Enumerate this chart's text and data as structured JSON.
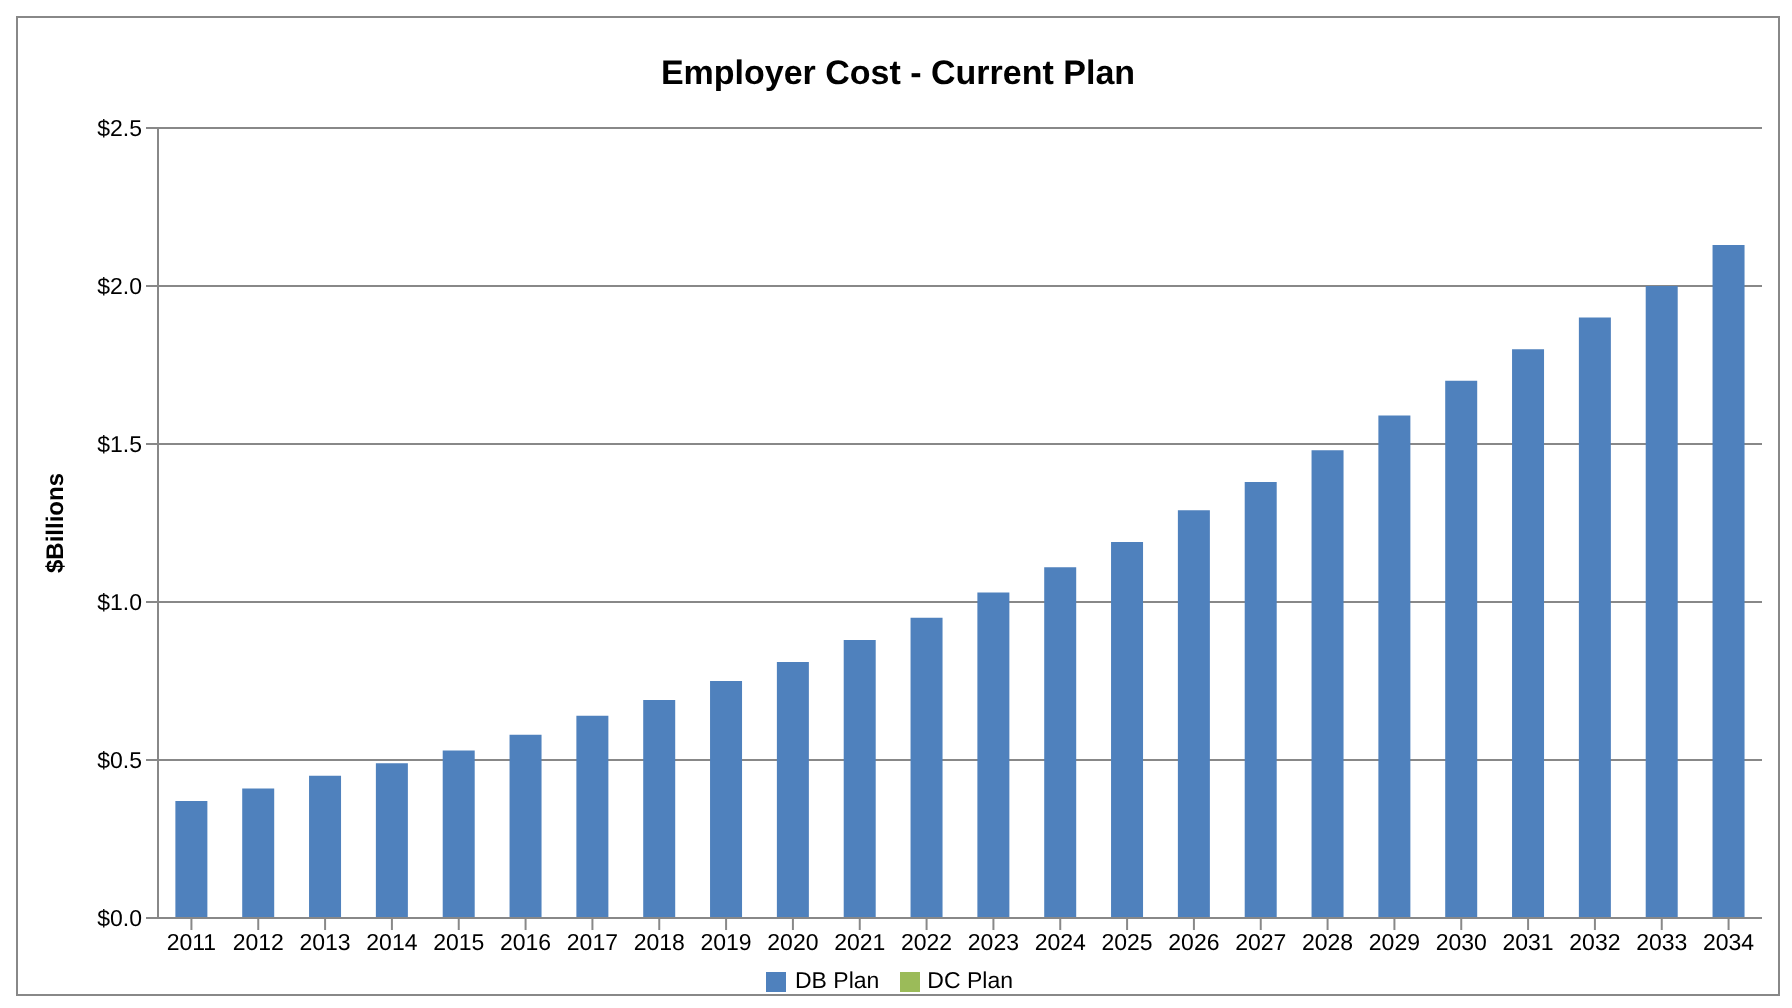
{
  "chart_data": {
    "type": "bar",
    "title": "Employer Cost - Current Plan",
    "ylabel": "$Billions",
    "categories": [
      "2011",
      "2012",
      "2013",
      "2014",
      "2015",
      "2016",
      "2017",
      "2018",
      "2019",
      "2020",
      "2021",
      "2022",
      "2023",
      "2024",
      "2025",
      "2026",
      "2027",
      "2028",
      "2029",
      "2030",
      "2031",
      "2032",
      "2033",
      "2034"
    ],
    "series": [
      {
        "name": "DB Plan",
        "color": "#4f81bd",
        "values": [
          0.37,
          0.41,
          0.45,
          0.49,
          0.53,
          0.58,
          0.64,
          0.69,
          0.75,
          0.81,
          0.88,
          0.95,
          1.03,
          1.11,
          1.19,
          1.29,
          1.38,
          1.48,
          1.59,
          1.7,
          1.8,
          1.9,
          2.0,
          2.13
        ]
      },
      {
        "name": "DC Plan",
        "color": "#9bbb59",
        "values": [
          null,
          null,
          null,
          null,
          null,
          null,
          null,
          null,
          null,
          null,
          null,
          null,
          null,
          null,
          null,
          null,
          null,
          null,
          null,
          null,
          null,
          null,
          null,
          null
        ]
      }
    ],
    "stacked": true,
    "ylim": [
      0,
      2.5
    ],
    "yticks": [
      {
        "value": 0,
        "label": "$0.0"
      },
      {
        "value": 0.5,
        "label": "$0.5"
      },
      {
        "value": 1,
        "label": "$1.0"
      },
      {
        "value": 1.5,
        "label": "$1.5"
      },
      {
        "value": 2,
        "label": "$2.0"
      },
      {
        "value": 2.5,
        "label": "$2.5"
      }
    ],
    "grid": "y",
    "legend": "bottom"
  }
}
